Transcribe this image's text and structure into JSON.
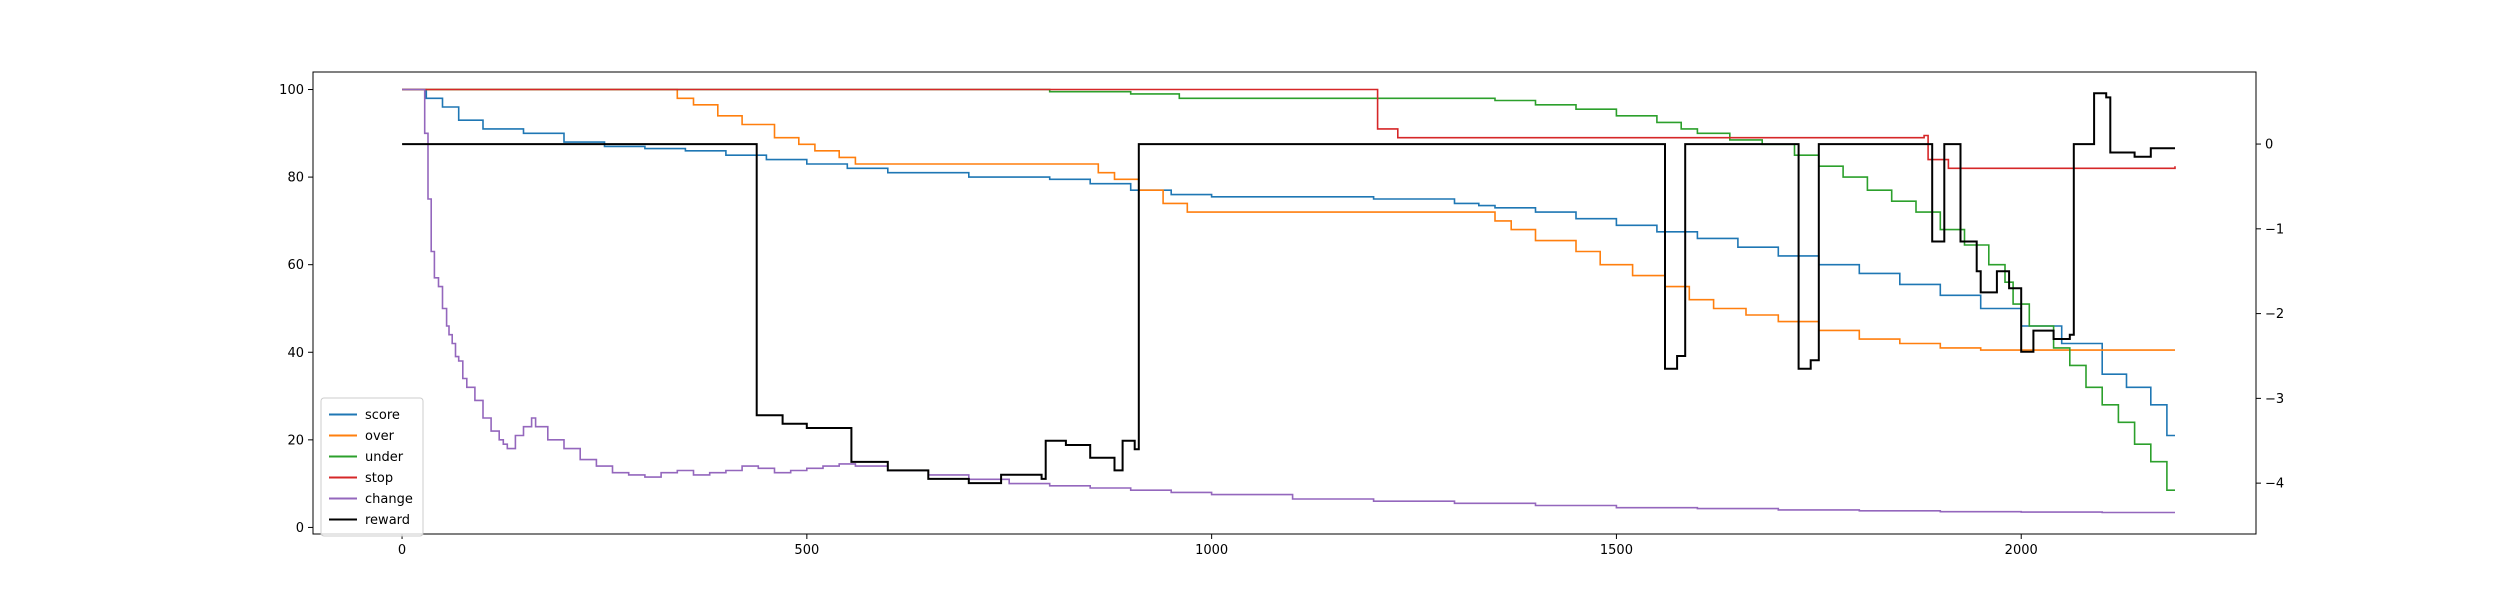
{
  "chart_data": {
    "type": "line",
    "title": "",
    "xlabel": "",
    "ylabel_left": "",
    "ylabel_right": "",
    "xlim": [
      -110,
      2290
    ],
    "ylim_left": [
      -1.5,
      104
    ],
    "ylim_right": [
      -4.6,
      0.85
    ],
    "x_ticks": [
      0,
      500,
      1000,
      1500,
      2000
    ],
    "y_left_ticks": [
      0,
      20,
      40,
      60,
      80,
      100
    ],
    "y_right_ticks": [
      -4,
      -3,
      -2,
      -1,
      0
    ],
    "grid": false,
    "legend_position": "lower-left",
    "series": [
      {
        "name": "score",
        "axis": "left",
        "color": "#1f77b4",
        "points": [
          [
            0,
            100
          ],
          [
            25,
            100
          ],
          [
            30,
            98
          ],
          [
            50,
            96
          ],
          [
            70,
            93
          ],
          [
            100,
            91
          ],
          [
            150,
            90
          ],
          [
            200,
            88
          ],
          [
            250,
            87
          ],
          [
            300,
            86.5
          ],
          [
            350,
            86
          ],
          [
            400,
            85
          ],
          [
            450,
            84
          ],
          [
            500,
            83
          ],
          [
            550,
            82
          ],
          [
            600,
            81
          ],
          [
            700,
            80
          ],
          [
            800,
            79.5
          ],
          [
            850,
            78.5
          ],
          [
            900,
            77
          ],
          [
            950,
            76
          ],
          [
            1000,
            75.5
          ],
          [
            1200,
            75
          ],
          [
            1300,
            74
          ],
          [
            1330,
            73.5
          ],
          [
            1350,
            73
          ],
          [
            1400,
            72
          ],
          [
            1450,
            70.5
          ],
          [
            1500,
            69
          ],
          [
            1550,
            67.5
          ],
          [
            1600,
            66
          ],
          [
            1650,
            64
          ],
          [
            1700,
            62
          ],
          [
            1750,
            60
          ],
          [
            1800,
            58
          ],
          [
            1850,
            55.5
          ],
          [
            1900,
            53
          ],
          [
            1950,
            50
          ],
          [
            2000,
            46
          ],
          [
            2050,
            42
          ],
          [
            2100,
            35
          ],
          [
            2130,
            32
          ],
          [
            2160,
            28
          ],
          [
            2180,
            21
          ],
          [
            2190,
            21
          ]
        ]
      },
      {
        "name": "over",
        "axis": "left",
        "color": "#ff7f0e",
        "points": [
          [
            0,
            100
          ],
          [
            330,
            100
          ],
          [
            340,
            98
          ],
          [
            360,
            96.5
          ],
          [
            390,
            94
          ],
          [
            420,
            92
          ],
          [
            460,
            89
          ],
          [
            490,
            87.5
          ],
          [
            510,
            86
          ],
          [
            540,
            84.5
          ],
          [
            560,
            83
          ],
          [
            600,
            83
          ],
          [
            845,
            83
          ],
          [
            860,
            81
          ],
          [
            880,
            79.5
          ],
          [
            910,
            77
          ],
          [
            940,
            74
          ],
          [
            970,
            72
          ],
          [
            1000,
            72
          ],
          [
            1330,
            72
          ],
          [
            1350,
            70
          ],
          [
            1370,
            68
          ],
          [
            1400,
            65.5
          ],
          [
            1450,
            63
          ],
          [
            1480,
            60
          ],
          [
            1520,
            57.5
          ],
          [
            1560,
            55
          ],
          [
            1590,
            52
          ],
          [
            1620,
            50
          ],
          [
            1660,
            48.5
          ],
          [
            1700,
            47
          ],
          [
            1750,
            45
          ],
          [
            1800,
            43
          ],
          [
            1850,
            42
          ],
          [
            1900,
            41
          ],
          [
            1950,
            40.5
          ],
          [
            2000,
            40.5
          ],
          [
            2190,
            40.5
          ]
        ]
      },
      {
        "name": "under",
        "axis": "left",
        "color": "#2ca02c",
        "points": [
          [
            0,
            100
          ],
          [
            800,
            99.5
          ],
          [
            900,
            99
          ],
          [
            960,
            98
          ],
          [
            1000,
            98
          ],
          [
            1300,
            98
          ],
          [
            1350,
            97.5
          ],
          [
            1400,
            96.5
          ],
          [
            1450,
            95.5
          ],
          [
            1500,
            94
          ],
          [
            1550,
            92.5
          ],
          [
            1580,
            91
          ],
          [
            1600,
            90
          ],
          [
            1640,
            88.5
          ],
          [
            1680,
            87.5
          ],
          [
            1720,
            85
          ],
          [
            1750,
            82.5
          ],
          [
            1780,
            80
          ],
          [
            1810,
            77
          ],
          [
            1840,
            74.5
          ],
          [
            1870,
            72
          ],
          [
            1900,
            68
          ],
          [
            1930,
            64.5
          ],
          [
            1960,
            60
          ],
          [
            1980,
            56
          ],
          [
            1990,
            51
          ],
          [
            2010,
            46
          ],
          [
            2040,
            41
          ],
          [
            2060,
            37
          ],
          [
            2080,
            32
          ],
          [
            2100,
            28
          ],
          [
            2120,
            24
          ],
          [
            2140,
            19
          ],
          [
            2160,
            15
          ],
          [
            2180,
            8.5
          ],
          [
            2190,
            8.5
          ]
        ]
      },
      {
        "name": "stop",
        "axis": "left",
        "color": "#d62728",
        "points": [
          [
            0,
            100
          ],
          [
            1200,
            100
          ],
          [
            1205,
            91
          ],
          [
            1230,
            89
          ],
          [
            1300,
            89
          ],
          [
            1500,
            89
          ],
          [
            1880,
            89.5
          ],
          [
            1885,
            84
          ],
          [
            1910,
            82
          ],
          [
            2000,
            82
          ],
          [
            2190,
            82.5
          ]
        ]
      },
      {
        "name": "change",
        "axis": "left",
        "color": "#9467bd",
        "points": [
          [
            0,
            100
          ],
          [
            27,
            100
          ],
          [
            28,
            90
          ],
          [
            32,
            75
          ],
          [
            36,
            63
          ],
          [
            40,
            57
          ],
          [
            45,
            55
          ],
          [
            50,
            50
          ],
          [
            55,
            46
          ],
          [
            58,
            44
          ],
          [
            62,
            42
          ],
          [
            66,
            39
          ],
          [
            70,
            38
          ],
          [
            75,
            34
          ],
          [
            80,
            32
          ],
          [
            90,
            29
          ],
          [
            100,
            25
          ],
          [
            110,
            22
          ],
          [
            120,
            20
          ],
          [
            125,
            19
          ],
          [
            130,
            18
          ],
          [
            140,
            21
          ],
          [
            150,
            23
          ],
          [
            160,
            25
          ],
          [
            165,
            23
          ],
          [
            180,
            20
          ],
          [
            200,
            18
          ],
          [
            220,
            15.5
          ],
          [
            240,
            14
          ],
          [
            260,
            12.5
          ],
          [
            280,
            12
          ],
          [
            300,
            11.5
          ],
          [
            320,
            12.5
          ],
          [
            340,
            13
          ],
          [
            360,
            12
          ],
          [
            380,
            12.5
          ],
          [
            400,
            13
          ],
          [
            420,
            14
          ],
          [
            440,
            13.5
          ],
          [
            460,
            12.5
          ],
          [
            480,
            13
          ],
          [
            500,
            13.5
          ],
          [
            520,
            14
          ],
          [
            540,
            14.5
          ],
          [
            560,
            14
          ],
          [
            600,
            13
          ],
          [
            650,
            12
          ],
          [
            700,
            11
          ],
          [
            750,
            10
          ],
          [
            800,
            9.5
          ],
          [
            850,
            9
          ],
          [
            900,
            8.5
          ],
          [
            950,
            8
          ],
          [
            1000,
            7.5
          ],
          [
            1100,
            6.5
          ],
          [
            1200,
            6
          ],
          [
            1300,
            5.5
          ],
          [
            1400,
            5
          ],
          [
            1500,
            4.5
          ],
          [
            1600,
            4.3
          ],
          [
            1700,
            4
          ],
          [
            1800,
            3.8
          ],
          [
            1900,
            3.6
          ],
          [
            2000,
            3.5
          ],
          [
            2100,
            3.4
          ],
          [
            2190,
            3.4
          ]
        ]
      },
      {
        "name": "reward",
        "axis": "right",
        "color": "#000000",
        "points": [
          [
            0,
            0
          ],
          [
            438,
            0
          ],
          [
            438,
            -3.2
          ],
          [
            470,
            -3.3
          ],
          [
            500,
            -3.35
          ],
          [
            520,
            -3.35
          ],
          [
            555,
            -3.35
          ],
          [
            555,
            -3.75
          ],
          [
            600,
            -3.85
          ],
          [
            650,
            -3.95
          ],
          [
            700,
            -4.0
          ],
          [
            740,
            -3.9
          ],
          [
            790,
            -3.95
          ],
          [
            795,
            -3.5
          ],
          [
            820,
            -3.55
          ],
          [
            850,
            -3.7
          ],
          [
            880,
            -3.85
          ],
          [
            890,
            -3.5
          ],
          [
            905,
            -3.6
          ],
          [
            910,
            0
          ],
          [
            1560,
            0
          ],
          [
            1560,
            -2.65
          ],
          [
            1575,
            -2.5
          ],
          [
            1585,
            -2.5
          ],
          [
            1585,
            0
          ],
          [
            1725,
            0
          ],
          [
            1725,
            -2.65
          ],
          [
            1740,
            -2.55
          ],
          [
            1750,
            -2.55
          ],
          [
            1750,
            0
          ],
          [
            1890,
            0
          ],
          [
            1890,
            -1.15
          ],
          [
            1905,
            -1.1
          ],
          [
            1905,
            0
          ],
          [
            1925,
            0
          ],
          [
            1925,
            -1.15
          ],
          [
            1945,
            -1.5
          ],
          [
            1950,
            -1.75
          ],
          [
            1970,
            -1.5
          ],
          [
            1985,
            -1.7
          ],
          [
            2000,
            -2.45
          ],
          [
            2015,
            -2.2
          ],
          [
            2040,
            -2.3
          ],
          [
            2060,
            -2.25
          ],
          [
            2065,
            0
          ],
          [
            2085,
            0
          ],
          [
            2090,
            0.6
          ],
          [
            2105,
            0.55
          ],
          [
            2110,
            -0.1
          ],
          [
            2140,
            -0.15
          ],
          [
            2160,
            -0.05
          ],
          [
            2190,
            -0.05
          ]
        ]
      }
    ]
  }
}
